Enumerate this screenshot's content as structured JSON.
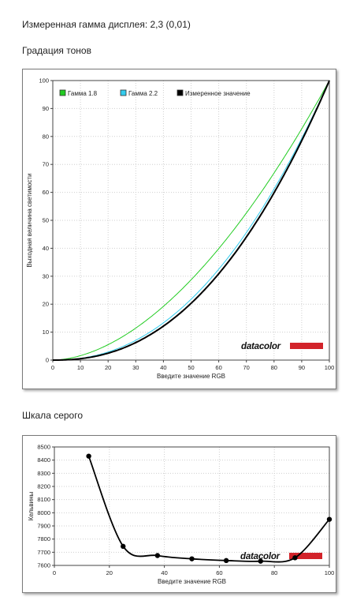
{
  "gamma_line": "Измеренная гамма дисплея: 2,3 (0,01)",
  "tone_section_title": "Градация тонов",
  "gray_section_title": "Шкала серого",
  "brand": {
    "logo_text": "datacolor",
    "bar_color": "#d2232a"
  },
  "chart_data": [
    {
      "type": "line",
      "title": "",
      "xlabel": "Введите значение RGB",
      "ylabel": "Выходная величина светимости",
      "xlim": [
        0,
        100
      ],
      "ylim": [
        0,
        100
      ],
      "xticks": [
        0,
        10,
        20,
        30,
        40,
        50,
        60,
        70,
        80,
        90,
        100
      ],
      "yticks": [
        0,
        10,
        20,
        30,
        40,
        50,
        60,
        70,
        80,
        90,
        100
      ],
      "grid": true,
      "legend_position": "top-left",
      "series": [
        {
          "name": "Гамма 1.8",
          "color": "#22cc22",
          "gamma": 1.8
        },
        {
          "name": "Гамма 2.2",
          "color": "#33ccee",
          "gamma": 2.2
        },
        {
          "name": "Измеренное значение",
          "color": "#000000",
          "gamma": 2.3
        }
      ]
    },
    {
      "type": "line",
      "title": "",
      "xlabel": "Введите значение RGB",
      "ylabel": "Кельвины",
      "xlim": [
        0,
        100
      ],
      "ylim": [
        7600,
        8500
      ],
      "xticks": [
        0,
        20,
        40,
        60,
        80,
        100
      ],
      "yticks": [
        7600,
        7700,
        7800,
        7900,
        8000,
        8100,
        8200,
        8300,
        8400,
        8500
      ],
      "grid": true,
      "series": [
        {
          "name": "",
          "color": "#000000",
          "x": [
            12.5,
            25,
            37.5,
            50,
            62.5,
            75,
            87.5,
            100
          ],
          "y": [
            8430,
            7745,
            7675,
            7650,
            7637,
            7632,
            7658,
            7950
          ]
        }
      ]
    }
  ]
}
